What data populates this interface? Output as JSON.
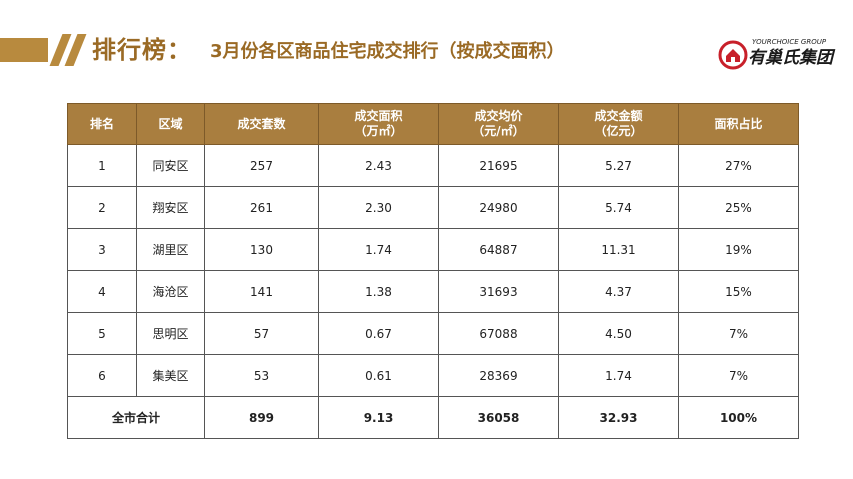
{
  "header": {
    "title": "排行榜：",
    "subtitle": "3月份各区商品住宅成交排行（按成交面积）"
  },
  "logo": {
    "text_en": "YOURCHOICE GROUP",
    "text_cn": "有巢氏集团"
  },
  "colors": {
    "accent": "#a97e3f",
    "title": "#9a6a25",
    "logo_red": "#c8202a"
  },
  "table": {
    "headers": {
      "rank": "排名",
      "district": "区域",
      "units": "成交套数",
      "area_line1": "成交面积",
      "area_line2": "（万㎡）",
      "price_line1": "成交均价",
      "price_line2": "（元/㎡）",
      "amount_line1": "成交金额",
      "amount_line2": "（亿元）",
      "share": "面积占比"
    },
    "rows": [
      {
        "rank": "1",
        "district": "同安区",
        "units": "257",
        "area": "2.43",
        "price": "21695",
        "amount": "5.27",
        "share": "27%"
      },
      {
        "rank": "2",
        "district": "翔安区",
        "units": "261",
        "area": "2.30",
        "price": "24980",
        "amount": "5.74",
        "share": "25%"
      },
      {
        "rank": "3",
        "district": "湖里区",
        "units": "130",
        "area": "1.74",
        "price": "64887",
        "amount": "11.31",
        "share": "19%"
      },
      {
        "rank": "4",
        "district": "海沧区",
        "units": "141",
        "area": "1.38",
        "price": "31693",
        "amount": "4.37",
        "share": "15%"
      },
      {
        "rank": "5",
        "district": "思明区",
        "units": "57",
        "area": "0.67",
        "price": "67088",
        "amount": "4.50",
        "share": "7%"
      },
      {
        "rank": "6",
        "district": "集美区",
        "units": "53",
        "area": "0.61",
        "price": "28369",
        "amount": "1.74",
        "share": "7%"
      }
    ],
    "total": {
      "label": "全市合计",
      "units": "899",
      "area": "9.13",
      "price": "36058",
      "amount": "32.93",
      "share": "100%"
    }
  }
}
